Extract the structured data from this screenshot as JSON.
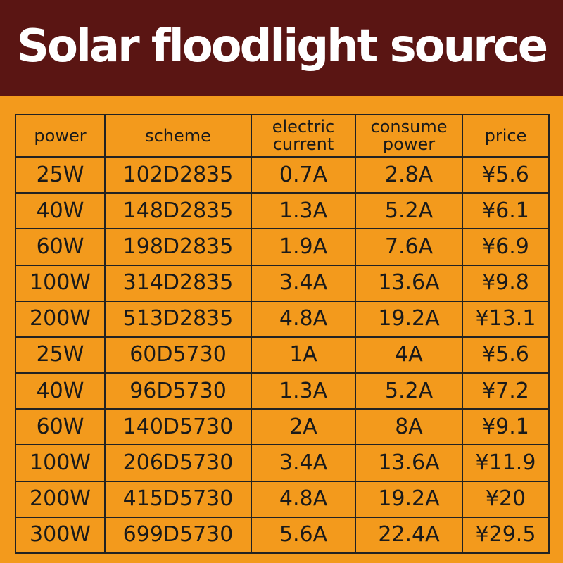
{
  "banner": {
    "title": "Solar floodlight source"
  },
  "table": {
    "headers": {
      "power": "power",
      "scheme": "scheme",
      "current_line1": "electric",
      "current_line2": "current",
      "consume_line1": "consume",
      "consume_line2": "power",
      "price": "price"
    },
    "rows": [
      {
        "power": "25W",
        "scheme": "102D2835",
        "current": "0.7A",
        "consume": "2.8A",
        "price": "¥5.6"
      },
      {
        "power": "40W",
        "scheme": "148D2835",
        "current": "1.3A",
        "consume": "5.2A",
        "price": "¥6.1"
      },
      {
        "power": "60W",
        "scheme": "198D2835",
        "current": "1.9A",
        "consume": "7.6A",
        "price": "¥6.9"
      },
      {
        "power": "100W",
        "scheme": "314D2835",
        "current": "3.4A",
        "consume": "13.6A",
        "price": "¥9.8"
      },
      {
        "power": "200W",
        "scheme": "513D2835",
        "current": "4.8A",
        "consume": "19.2A",
        "price": "¥13.1"
      },
      {
        "power": "25W",
        "scheme": "60D5730",
        "current": "1A",
        "consume": "4A",
        "price": "¥5.6"
      },
      {
        "power": "40W",
        "scheme": "96D5730",
        "current": "1.3A",
        "consume": "5.2A",
        "price": "¥7.2"
      },
      {
        "power": "60W",
        "scheme": "140D5730",
        "current": "2A",
        "consume": "8A",
        "price": "¥9.1"
      },
      {
        "power": "100W",
        "scheme": "206D5730",
        "current": "3.4A",
        "consume": "13.6A",
        "price": "¥11.9"
      },
      {
        "power": "200W",
        "scheme": "415D5730",
        "current": "4.8A",
        "consume": "19.2A",
        "price": "¥20"
      },
      {
        "power": "300W",
        "scheme": "699D5730",
        "current": "5.6A",
        "consume": "22.4A",
        "price": "¥29.5"
      }
    ]
  },
  "colors": {
    "banner_bg": "#5A1513",
    "page_bg": "#F39A1C",
    "grid_line": "#222222",
    "price_text": "#FFFFFF"
  }
}
